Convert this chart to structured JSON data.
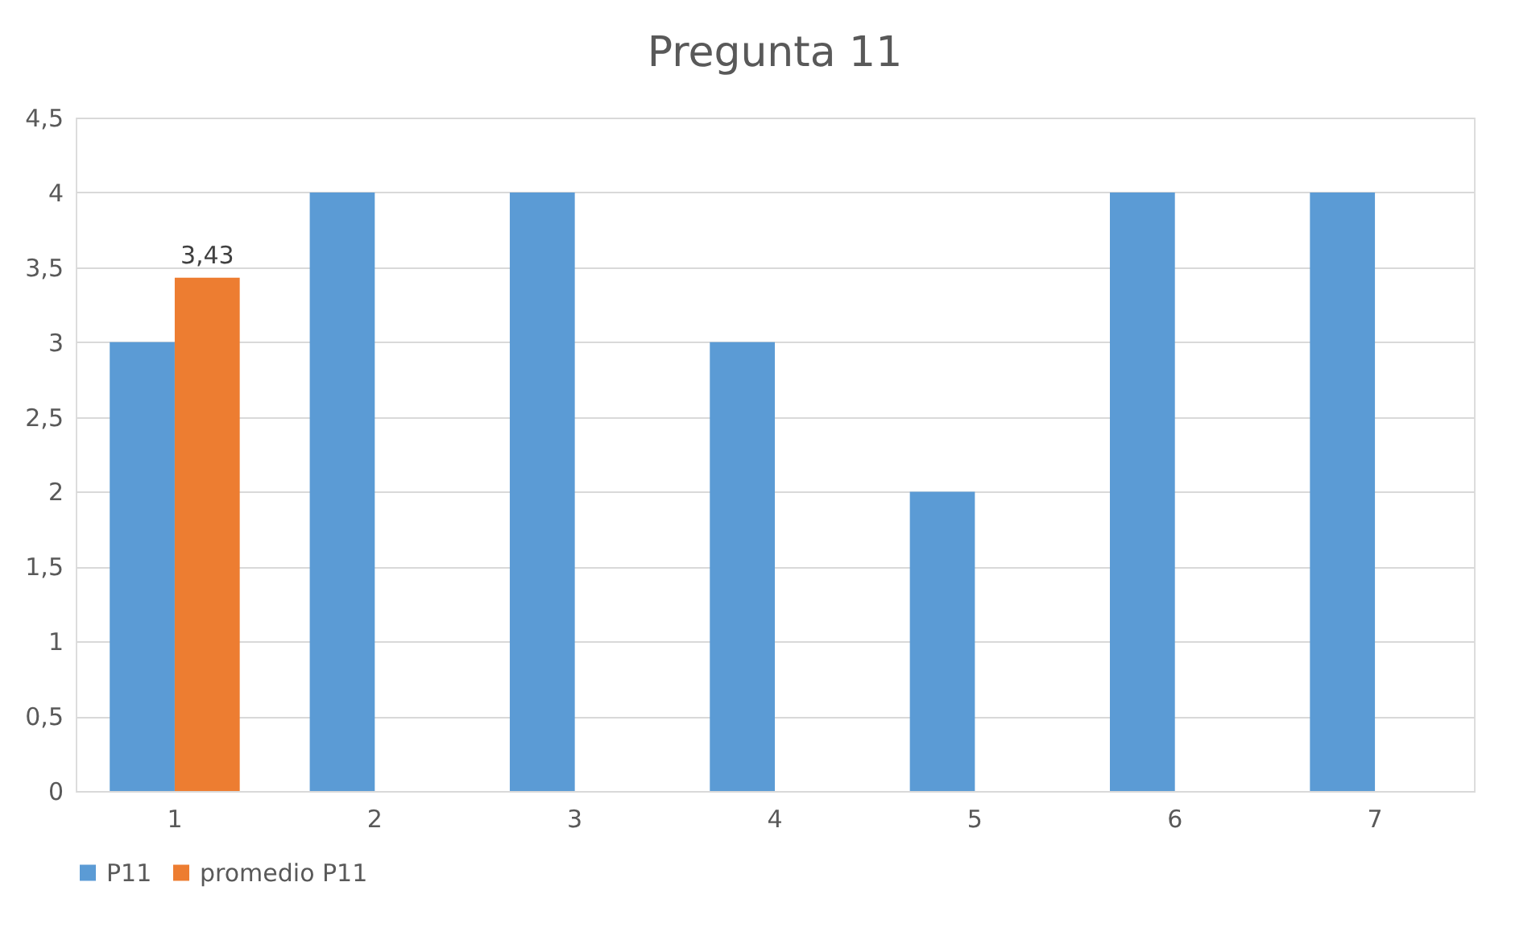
{
  "chart_data": {
    "type": "bar",
    "title": "Pregunta 11",
    "categories": [
      "1",
      "2",
      "3",
      "4",
      "5",
      "6",
      "7"
    ],
    "series": [
      {
        "name": "P11",
        "color": "#5b9bd5",
        "values": [
          3,
          4,
          4,
          3,
          2,
          4,
          4
        ]
      },
      {
        "name": "promedio P11",
        "color": "#ed7d31",
        "values": [
          3.43,
          null,
          null,
          null,
          null,
          null,
          null
        ],
        "value_labels": [
          "3,43",
          null,
          null,
          null,
          null,
          null,
          null
        ]
      }
    ],
    "ylim": [
      0,
      4.5
    ],
    "yticks": [
      0,
      {
        "value": 0.5,
        "label": "0,5"
      },
      1,
      {
        "value": 1.5,
        "label": "1,5"
      },
      2,
      {
        "value": 2.5,
        "label": "2,5"
      },
      3,
      {
        "value": 3.5,
        "label": "3,5"
      },
      4,
      {
        "value": 4.5,
        "label": "4,5"
      }
    ],
    "grid": "y",
    "legend": "bottom"
  }
}
